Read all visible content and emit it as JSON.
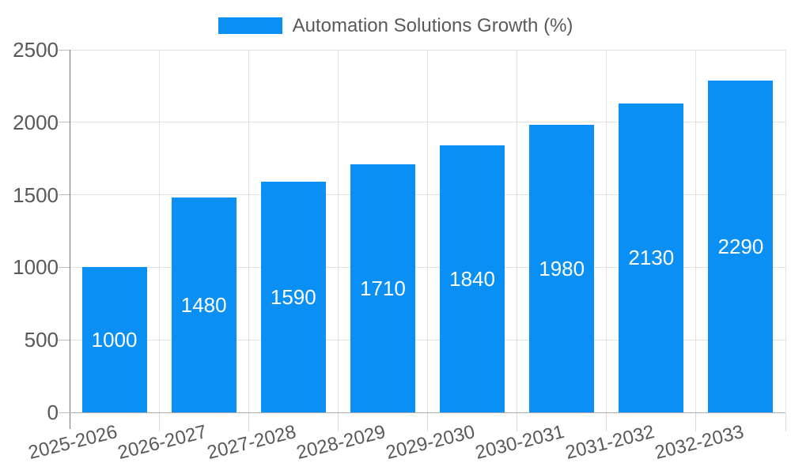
{
  "legend": {
    "label": "Automation Solutions Growth (%)"
  },
  "colors": {
    "bar": "#0a90f5",
    "bar_label_text": "#ffffff",
    "tick_text": "#58595b",
    "grid": "#e2e2e2",
    "axis": "#787878",
    "baseline": "#ababab"
  },
  "chart_data": {
    "type": "bar",
    "title": "Automation Solutions Growth (%)",
    "categories": [
      "2025-2026",
      "2026-2027",
      "2027-2028",
      "2028-2029",
      "2029-2030",
      "2030-2031",
      "2031-2032",
      "2032-2033"
    ],
    "values": [
      1000,
      1480,
      1590,
      1710,
      1840,
      1980,
      2130,
      2290
    ],
    "bar_value_labels": [
      "1000",
      "1480",
      "1590",
      "1710",
      "1840",
      "1980",
      "2130",
      "2290"
    ],
    "xlabel": "",
    "ylabel": "",
    "ylim": [
      0,
      2500
    ],
    "yticks": [
      0,
      500,
      1000,
      1500,
      2000,
      2500
    ],
    "grid": true,
    "legend_position": "top-center",
    "bar_color": "#0a90f5",
    "value_labels_position": "center-of-bar",
    "x_tick_rotation_deg": -14
  }
}
